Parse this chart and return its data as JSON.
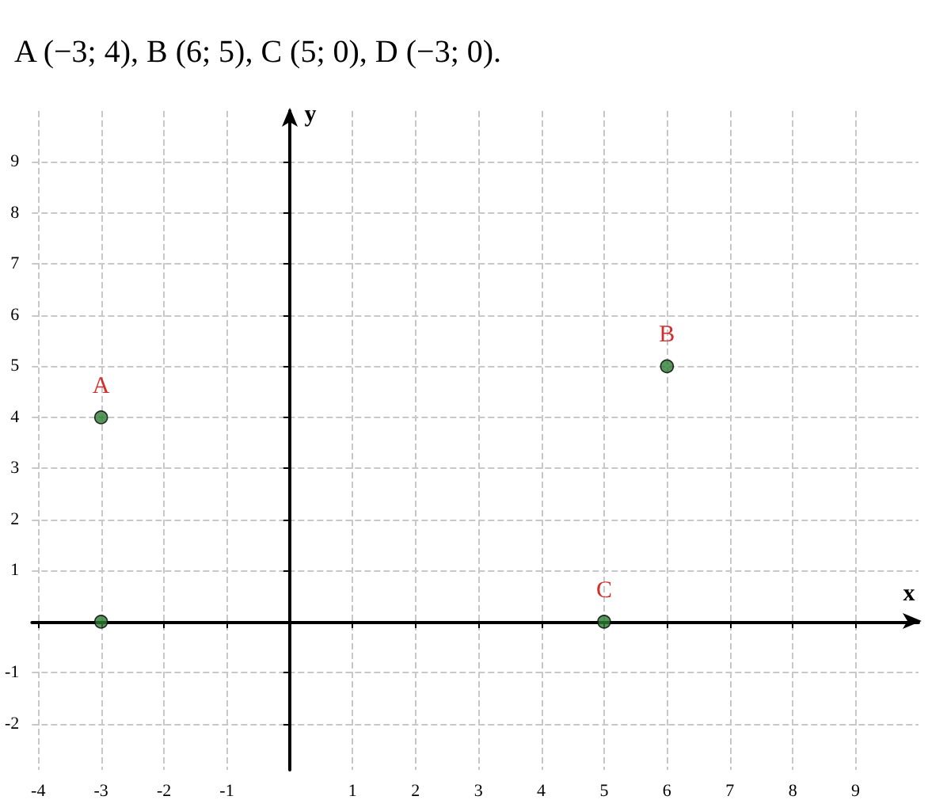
{
  "chart_data": {
    "type": "scatter",
    "title": "A (−3; 4), B (6; 5), C (5; 0), D (−3; 0).",
    "xlabel": "x",
    "ylabel": "y",
    "x": [
      -3,
      6,
      5,
      -3
    ],
    "values": [
      4,
      5,
      0,
      0
    ],
    "color": "#2e7d32",
    "marker": "circle",
    "xlim": [
      -4.1,
      10
    ],
    "ylim": [
      -2.9,
      10
    ],
    "xticks": [
      -4,
      -3,
      -2,
      -1,
      1,
      2,
      3,
      4,
      5,
      6,
      7,
      8,
      9
    ],
    "yticks": [
      -2,
      -1,
      1,
      2,
      3,
      4,
      5,
      6,
      7,
      8,
      9
    ],
    "grid": true,
    "annotations": [
      {
        "text": "A",
        "x": -3,
        "y": 4
      },
      {
        "text": "B",
        "x": 6,
        "y": 5
      },
      {
        "text": "C",
        "x": 5,
        "y": 0
      }
    ]
  }
}
